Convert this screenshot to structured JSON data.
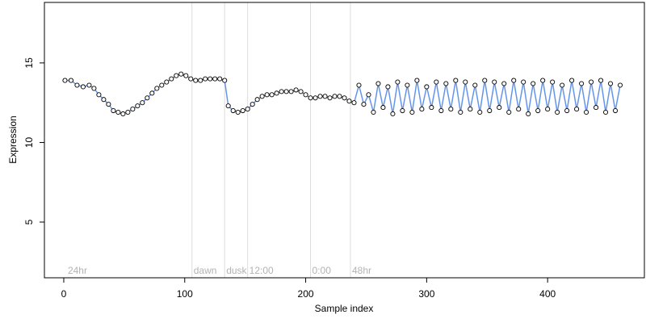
{
  "chart_data": {
    "type": "scatter",
    "xlabel": "Sample index",
    "ylabel": "Expression",
    "xlim": [
      -16,
      480
    ],
    "ylim": [
      1.5,
      18.8
    ],
    "x_ticks": [
      0,
      100,
      200,
      300,
      400
    ],
    "y_ticks": [
      5,
      10,
      15
    ],
    "grid": false,
    "legend": "none",
    "phase_markers": [
      {
        "x": 2,
        "label": "24hr",
        "line": false
      },
      {
        "x": 106,
        "label": "dawn",
        "line": true
      },
      {
        "x": 133,
        "label": "dusk",
        "line": true
      },
      {
        "x": 152,
        "label": "12:00",
        "line": true
      },
      {
        "x": 204,
        "label": "0:00",
        "line": true
      },
      {
        "x": 237,
        "label": "48hr",
        "line": true
      }
    ],
    "series": [
      {
        "name": "",
        "color": "#6495ed",
        "marker_fill": "#ffffff",
        "x": [
          1,
          6,
          11,
          16,
          21,
          25,
          29,
          33,
          37,
          41,
          45,
          49,
          53,
          57,
          61,
          65,
          69,
          73,
          77,
          81,
          85,
          89,
          93,
          97,
          101,
          105,
          109,
          113,
          117,
          121,
          125,
          129,
          133,
          136,
          140,
          144,
          148,
          152,
          156,
          160,
          164,
          168,
          172,
          176,
          180,
          184,
          188,
          192,
          196,
          200,
          204,
          208,
          212,
          216,
          220,
          224,
          228,
          232,
          236,
          240,
          244,
          248,
          252,
          256,
          260,
          264,
          268,
          272,
          276,
          280,
          284,
          288,
          292,
          296,
          300,
          304,
          308,
          312,
          316,
          320,
          324,
          328,
          332,
          336,
          340,
          344,
          348,
          352,
          356,
          360,
          364,
          368,
          372,
          376,
          380,
          384,
          388,
          392,
          396,
          400,
          404,
          408,
          412,
          416,
          420,
          424,
          428,
          432,
          436,
          440,
          444,
          448,
          452,
          456,
          460
        ],
        "y": [
          13.9,
          13.9,
          13.6,
          13.5,
          13.6,
          13.4,
          13.0,
          12.7,
          12.4,
          12.0,
          11.9,
          11.8,
          11.9,
          12.1,
          12.3,
          12.5,
          12.8,
          13.1,
          13.4,
          13.6,
          13.8,
          14.0,
          14.2,
          14.3,
          14.2,
          14.0,
          13.9,
          13.9,
          14.0,
          14.0,
          14.0,
          14.0,
          13.9,
          12.3,
          12.0,
          11.9,
          12.0,
          12.1,
          12.4,
          12.7,
          12.9,
          13.0,
          13.0,
          13.1,
          13.2,
          13.2,
          13.2,
          13.3,
          13.2,
          13.0,
          12.8,
          12.8,
          12.9,
          12.9,
          12.8,
          12.9,
          12.9,
          12.8,
          12.6,
          12.5,
          13.6,
          12.4,
          13.0,
          11.9,
          13.7,
          12.2,
          13.5,
          11.8,
          13.8,
          12.0,
          13.6,
          11.9,
          13.9,
          12.1,
          13.5,
          12.2,
          13.8,
          12.0,
          13.7,
          12.1,
          13.9,
          11.9,
          13.8,
          12.1,
          13.6,
          11.9,
          13.9,
          12.0,
          13.8,
          12.2,
          13.7,
          11.9,
          13.9,
          12.1,
          13.8,
          11.8,
          13.7,
          12.0,
          13.9,
          12.1,
          13.8,
          11.9,
          13.6,
          12.0,
          13.9,
          12.1,
          13.7,
          11.9,
          13.8,
          12.2,
          13.9,
          11.9,
          13.7,
          12.0,
          13.6
        ]
      }
    ]
  }
}
